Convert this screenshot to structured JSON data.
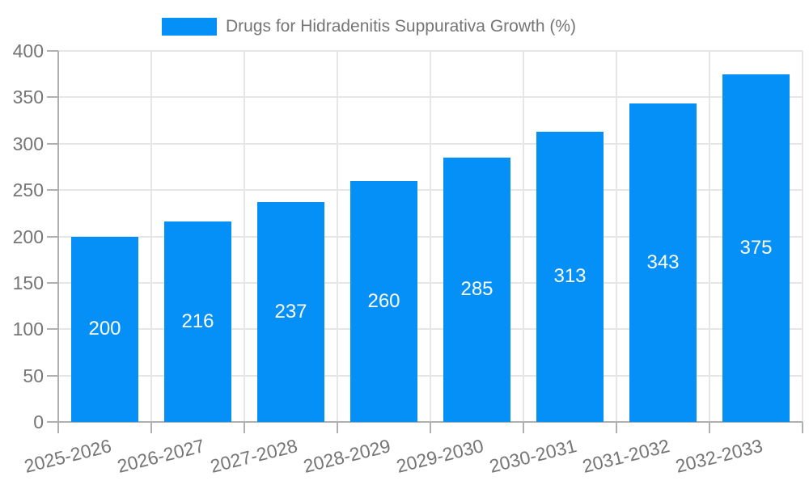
{
  "legend": {
    "label": "Drugs for Hidradenitis Suppurativa Growth (%)"
  },
  "chart_data": {
    "type": "bar",
    "title": "Drugs for Hidradenitis Suppurativa Growth (%)",
    "categories": [
      "2025-2026",
      "2026-2027",
      "2027-2028",
      "2028-2029",
      "2029-2030",
      "2030-2031",
      "2031-2032",
      "2032-2033"
    ],
    "values": [
      200,
      216,
      237,
      260,
      285,
      313,
      343,
      375
    ],
    "xlabel": "",
    "ylabel": "",
    "ylim": [
      0,
      400
    ],
    "yticks": [
      0,
      50,
      100,
      150,
      200,
      250,
      300,
      350,
      400
    ],
    "grid": true,
    "legend_position": "top",
    "bar_color": "#0590f8",
    "value_label_color": "#ffffff",
    "grid_color": "#e6e6e6",
    "axis_color": "#b0b0b0",
    "tick_label_color": "#757575"
  }
}
